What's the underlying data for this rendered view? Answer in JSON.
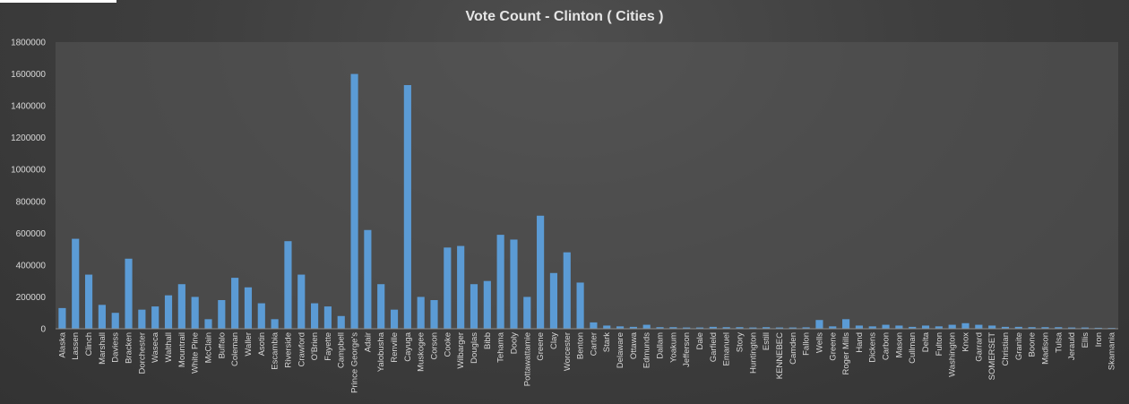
{
  "chart_data": {
    "type": "bar",
    "title": "Vote Count - Clinton ( Cities )",
    "xlabel": "",
    "ylabel": "",
    "ylim": [
      0,
      1800000
    ],
    "yticks": [
      0,
      200000,
      400000,
      600000,
      800000,
      1000000,
      1200000,
      1400000,
      1600000,
      1800000
    ],
    "grid": false,
    "legend": "none",
    "bar_color": "#5b9bd5",
    "category_labels": [
      "Alaska",
      "Lassen",
      "Clinch",
      "Marshall",
      "Daviess",
      "Bracken",
      "Dorchester",
      "Waseca",
      "Walthall",
      "Mountrail",
      "White Pine",
      "McClain",
      "Buffalo",
      "Coleman",
      "Waller",
      "Asotin",
      "Escambia",
      "Riverside",
      "Crawford",
      "O'Brien",
      "Fayette",
      "Campbell",
      "Prince George's",
      "Adair",
      "Yalobusha",
      "Renville",
      "Cayuga",
      "Muskogee",
      "Corson",
      "Cooke",
      "Wilbarger",
      "Douglas",
      "Bibb",
      "Tehama",
      "Dooly",
      "Pottawattamie",
      "Greene",
      "Clay",
      "Worcester",
      "Benton",
      "Carter",
      "Stark",
      "Delaware",
      "Ottawa",
      "Edmunds",
      "Dallam",
      "Yoakum",
      "Jefferson",
      "Dale",
      "Garfield",
      "Emanuel",
      "Story",
      "Huntington",
      "Estill",
      "KENNEBEC",
      "Camden",
      "Fallon",
      "Wells",
      "Greene",
      "Roger Mills",
      "Hand",
      "Dickens",
      "Carbon",
      "Mason",
      "Cullman",
      "Delta",
      "Fulton",
      "Washington",
      "Knox",
      "Garrard",
      "SOMERSET",
      "Christian",
      "Granite",
      "Boone",
      "Madison",
      "Tulsa",
      "Jerauld",
      "Ellis",
      "Iron",
      "Skamania"
    ],
    "values": [
      130000,
      565000,
      340000,
      150000,
      100000,
      440000,
      120000,
      140000,
      210000,
      280000,
      200000,
      60000,
      180000,
      320000,
      260000,
      160000,
      60000,
      550000,
      340000,
      160000,
      140000,
      80000,
      1600000,
      620000,
      280000,
      120000,
      1530000,
      200000,
      180000,
      510000,
      520000,
      280000,
      300000,
      590000,
      560000,
      200000,
      710000,
      350000,
      480000,
      290000,
      40000,
      20000,
      15000,
      12000,
      25000,
      10000,
      10000,
      8000,
      8000,
      12000,
      10000,
      10000,
      8000,
      10000,
      8000,
      8000,
      9000,
      55000,
      15000,
      60000,
      20000,
      15000,
      25000,
      20000,
      12000,
      20000,
      15000,
      25000,
      35000,
      25000,
      20000,
      12000,
      12000,
      10000,
      10000,
      10000,
      8000,
      8000,
      6000,
      5000
    ]
  }
}
